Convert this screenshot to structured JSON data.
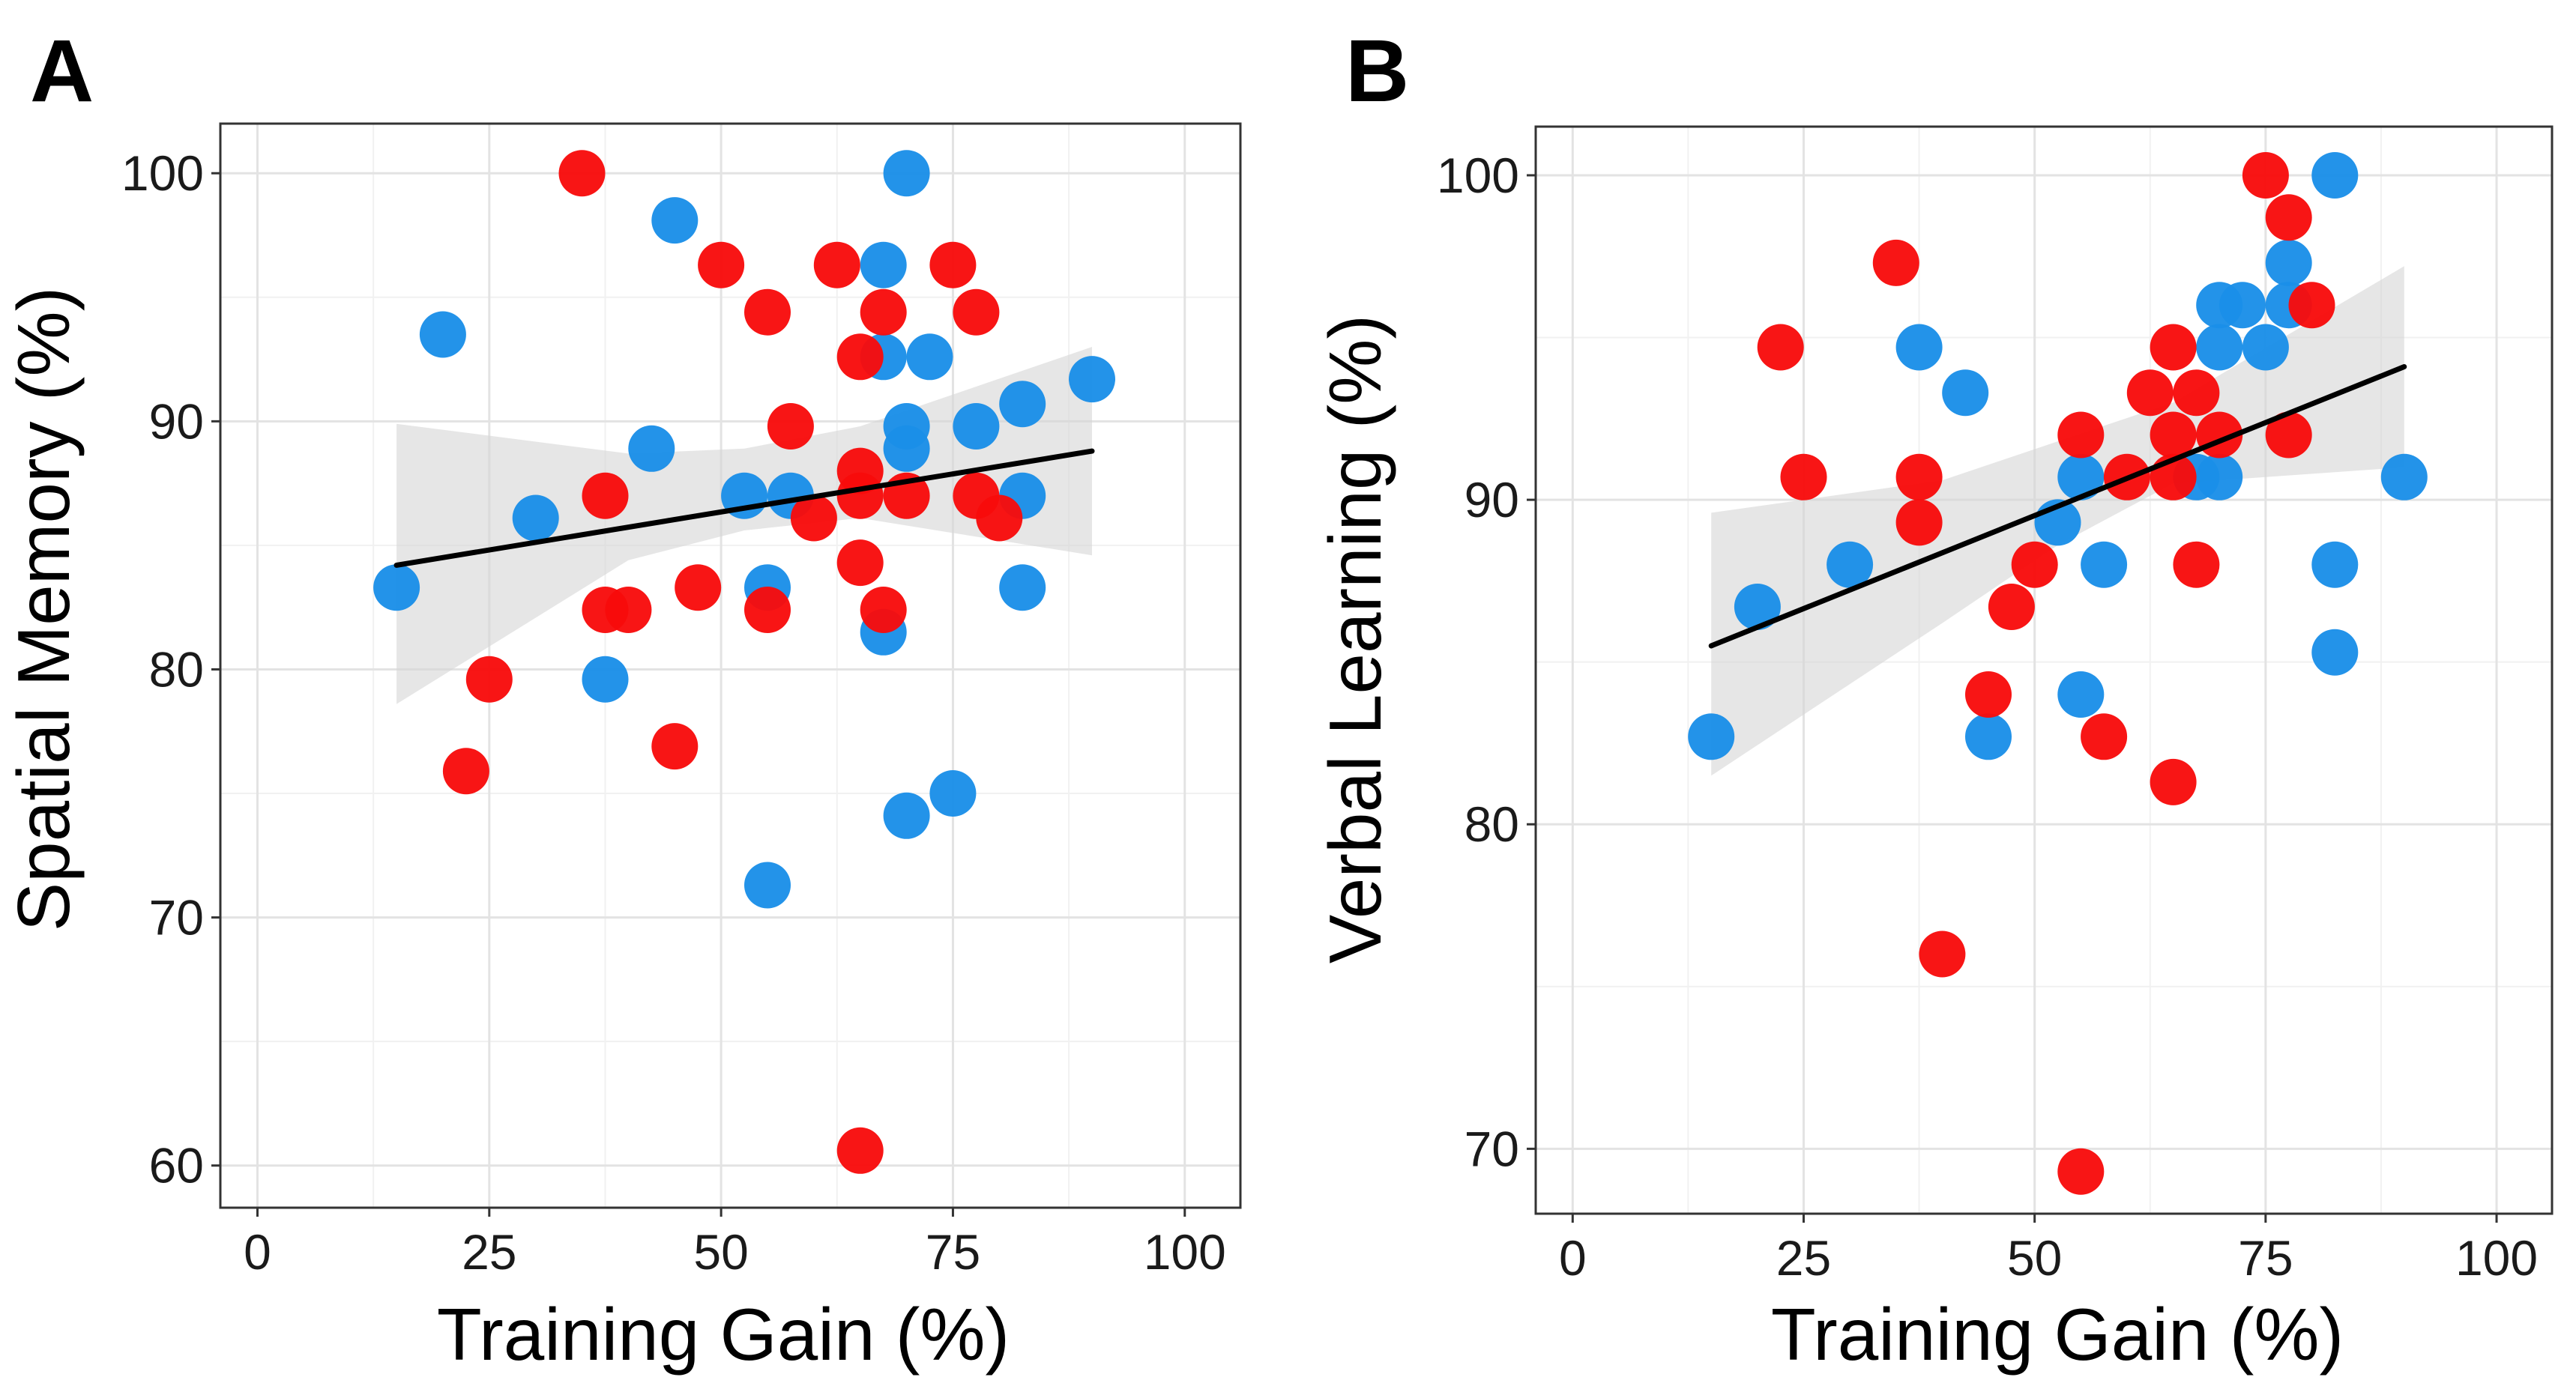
{
  "colors": {
    "background": "#ffffff",
    "panel_border": "#333333",
    "grid_major": "#e3e3e3",
    "grid_minor": "#f1f1f1",
    "ci_band": "#d6d6d6",
    "fit_line": "#000000",
    "group_blue": "#1a8fe8",
    "group_red": "#f80b0b"
  },
  "chart_data": [
    {
      "panel_label": "A",
      "type": "scatter",
      "xlabel": "Training Gain (%)",
      "ylabel": "Spatial Memory (%)",
      "xlim": [
        -4,
        106
      ],
      "ylim": [
        58.3,
        102
      ],
      "xticks": [
        0,
        25,
        50,
        75,
        100
      ],
      "xtick_labels": [
        "0",
        "25",
        "50",
        "75",
        "100"
      ],
      "yticks": [
        60,
        70,
        80,
        90,
        100
      ],
      "ytick_labels": [
        "60",
        "70",
        "80",
        "90",
        "100"
      ],
      "fit": {
        "x": [
          15,
          90
        ],
        "y": [
          84.2,
          88.8
        ]
      },
      "ci_band": {
        "x": [
          15,
          40,
          52.5,
          65,
          90
        ],
        "upper": [
          89.9,
          88.7,
          88.9,
          89.8,
          93.0
        ],
        "lower": [
          78.6,
          84.4,
          85.6,
          86.1,
          84.6
        ]
      },
      "series": [
        {
          "name": "blue",
          "color_key": "group_blue",
          "points": [
            [
              15,
              83.3
            ],
            [
              20,
              93.5
            ],
            [
              30,
              86.1
            ],
            [
              37.5,
              79.6
            ],
            [
              42.5,
              88.9
            ],
            [
              45,
              98.1
            ],
            [
              52.5,
              87.0
            ],
            [
              55,
              83.3
            ],
            [
              55,
              71.3
            ],
            [
              57.5,
              87.0
            ],
            [
              67.5,
              96.3
            ],
            [
              67.5,
              92.6
            ],
            [
              67.5,
              81.5
            ],
            [
              70,
              100
            ],
            [
              70,
              89.8
            ],
            [
              70,
              88.9
            ],
            [
              70,
              74.1
            ],
            [
              72.5,
              92.6
            ],
            [
              75,
              75.0
            ],
            [
              77.5,
              89.8
            ],
            [
              82.5,
              90.7
            ],
            [
              82.5,
              87.0
            ],
            [
              82.5,
              83.3
            ],
            [
              90,
              91.7
            ]
          ]
        },
        {
          "name": "red",
          "color_key": "group_red",
          "points": [
            [
              22.5,
              75.9
            ],
            [
              25,
              79.6
            ],
            [
              35,
              100
            ],
            [
              37.5,
              87.0
            ],
            [
              37.5,
              82.4
            ],
            [
              40,
              82.4
            ],
            [
              45,
              76.9
            ],
            [
              47.5,
              83.3
            ],
            [
              50,
              96.3
            ],
            [
              55,
              94.4
            ],
            [
              55,
              82.4
            ],
            [
              57.5,
              89.8
            ],
            [
              60,
              86.1
            ],
            [
              62.5,
              96.3
            ],
            [
              65,
              92.6
            ],
            [
              65,
              88.0
            ],
            [
              65,
              87.0
            ],
            [
              65,
              84.3
            ],
            [
              65,
              60.6
            ],
            [
              67.5,
              94.4
            ],
            [
              67.5,
              82.4
            ],
            [
              70,
              87.0
            ],
            [
              75,
              96.3
            ],
            [
              77.5,
              94.4
            ],
            [
              77.5,
              87.0
            ],
            [
              80,
              86.1
            ]
          ]
        }
      ]
    },
    {
      "panel_label": "B",
      "type": "scatter",
      "xlabel": "Training Gain (%)",
      "ylabel": "Verbal Learning (%)",
      "xlim": [
        -4,
        106
      ],
      "ylim": [
        68.0,
        101.5
      ],
      "xticks": [
        0,
        25,
        50,
        75,
        100
      ],
      "xtick_labels": [
        "0",
        "25",
        "50",
        "75",
        "100"
      ],
      "yticks": [
        70,
        80,
        90,
        100
      ],
      "ytick_labels": [
        "70",
        "80",
        "90",
        "100"
      ],
      "fit": {
        "x": [
          15,
          90
        ],
        "y": [
          85.5,
          94.1
        ]
      },
      "ci_band": {
        "x": [
          15,
          40,
          52.5,
          65,
          90
        ],
        "upper": [
          89.6,
          90.6,
          91.8,
          93.0,
          97.2
        ],
        "lower": [
          81.5,
          86.2,
          88.6,
          90.5,
          91.0
        ]
      },
      "series": [
        {
          "name": "blue",
          "color_key": "group_blue",
          "points": [
            [
              15,
              82.7
            ],
            [
              20,
              86.7
            ],
            [
              30,
              88.0
            ],
            [
              37.5,
              94.7
            ],
            [
              42.5,
              93.3
            ],
            [
              45,
              82.7
            ],
            [
              52.5,
              89.3
            ],
            [
              55,
              90.7
            ],
            [
              55,
              84.0
            ],
            [
              57.5,
              88.0
            ],
            [
              67.5,
              90.7
            ],
            [
              70,
              96.0
            ],
            [
              70,
              94.7
            ],
            [
              70,
              90.7
            ],
            [
              72.5,
              96.0
            ],
            [
              75,
              94.7
            ],
            [
              77.5,
              97.3
            ],
            [
              77.5,
              96.0
            ],
            [
              82.5,
              100
            ],
            [
              82.5,
              88.0
            ],
            [
              82.5,
              85.3
            ],
            [
              90,
              90.7
            ]
          ]
        },
        {
          "name": "red",
          "color_key": "group_red",
          "points": [
            [
              22.5,
              94.7
            ],
            [
              25,
              90.7
            ],
            [
              35,
              97.3
            ],
            [
              37.5,
              90.7
            ],
            [
              37.5,
              89.3
            ],
            [
              40,
              76.0
            ],
            [
              45,
              84.0
            ],
            [
              47.5,
              86.7
            ],
            [
              50,
              88.0
            ],
            [
              55,
              92.0
            ],
            [
              55,
              69.3
            ],
            [
              57.5,
              82.7
            ],
            [
              60,
              90.7
            ],
            [
              62.5,
              93.3
            ],
            [
              65,
              94.7
            ],
            [
              65,
              92.0
            ],
            [
              65,
              90.7
            ],
            [
              65,
              81.3
            ],
            [
              67.5,
              93.3
            ],
            [
              67.5,
              88.0
            ],
            [
              70,
              92.0
            ],
            [
              75,
              100
            ],
            [
              77.5,
              98.7
            ],
            [
              77.5,
              92.0
            ],
            [
              80,
              96.0
            ]
          ]
        }
      ]
    }
  ]
}
